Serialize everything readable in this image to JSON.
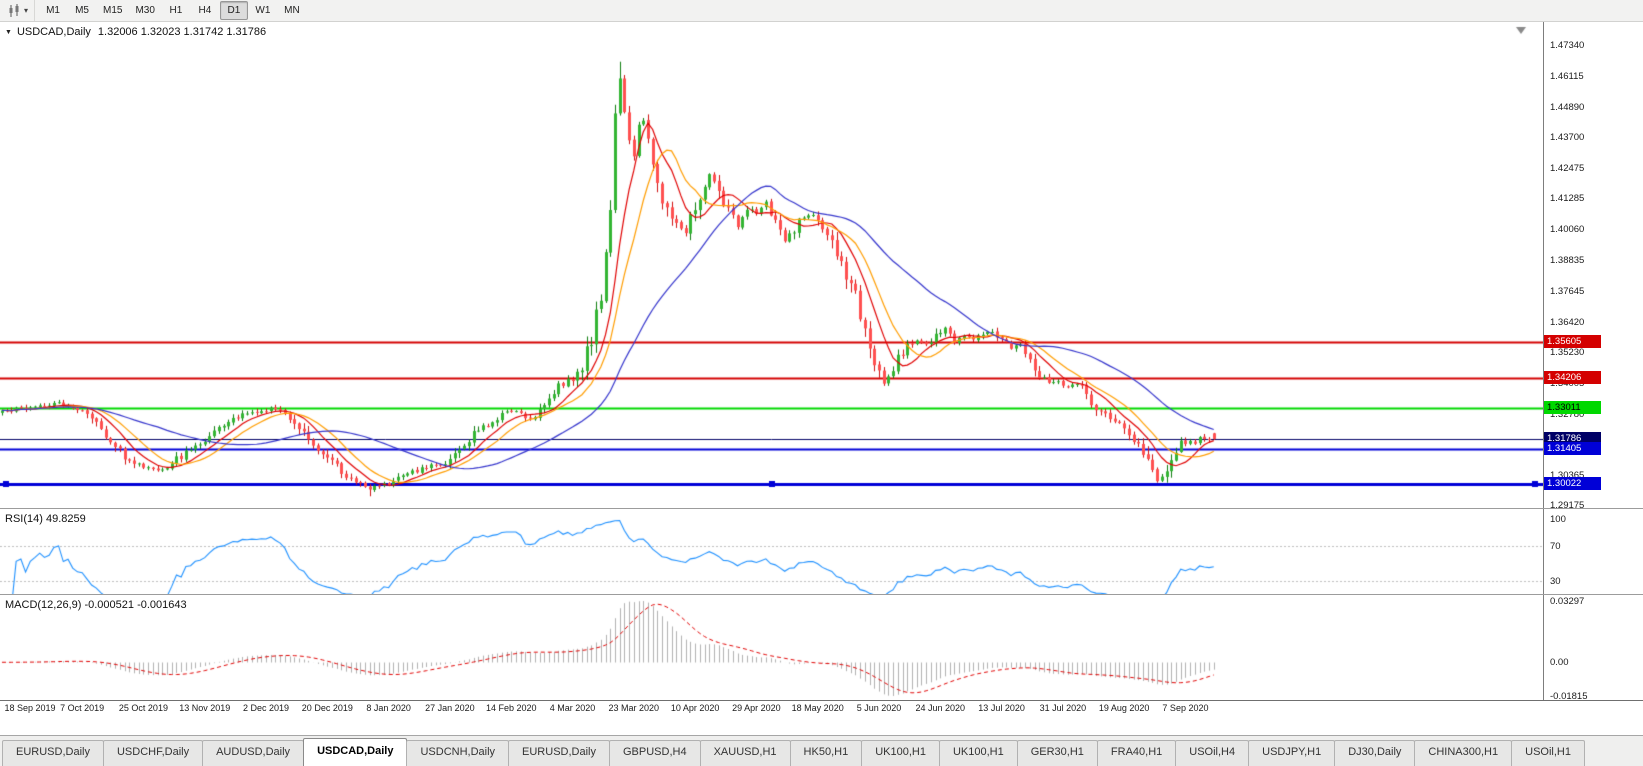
{
  "toolbar": {
    "timeframes": [
      "M1",
      "M5",
      "M15",
      "M30",
      "H1",
      "H4",
      "D1",
      "W1",
      "MN"
    ],
    "active_timeframe": "D1",
    "dropdown_glyph": "▾"
  },
  "main_chart": {
    "collapse_glyph": "▼",
    "title_symbol": "USDCAD,Daily",
    "title_ohlc": "1.32006 1.32023 1.31742 1.31786",
    "price_axis_labels": [
      "1.47340",
      "1.46115",
      "1.44890",
      "1.43700",
      "1.42475",
      "1.41285",
      "1.40060",
      "1.38835",
      "1.37645",
      "1.36420",
      "1.35230",
      "1.34005",
      "1.32780",
      "1.31590",
      "1.30365",
      "1.29175"
    ],
    "hlines": [
      {
        "label": "1.35605",
        "price": 1.35605,
        "color": "#d40000",
        "text_color": "#ffffff",
        "width": 2
      },
      {
        "label": "1.34206",
        "price": 1.34206,
        "color": "#d40000",
        "text_color": "#ffffff",
        "width": 2
      },
      {
        "label": "1.33011",
        "price": 1.33011,
        "color": "#00d800",
        "text_color": "#000000",
        "width": 2
      },
      {
        "label": "1.31786",
        "price": 1.31786,
        "color": "#000066",
        "text_color": "#ffffff",
        "width": 1
      },
      {
        "label": "1.31405",
        "price": 1.31405,
        "color": "#0000d7",
        "text_color": "#ffffff",
        "width": 2
      },
      {
        "label": "1.30022",
        "price": 1.30022,
        "color": "#0000d7",
        "text_color": "#ffffff",
        "width": 3,
        "selected": true
      }
    ],
    "date_labels": [
      "18 Sep 2019",
      "7 Oct 2019",
      "25 Oct 2019",
      "13 Nov 2019",
      "2 Dec 2019",
      "20 Dec 2019",
      "8 Jan 2020",
      "27 Jan 2020",
      "14 Feb 2020",
      "4 Mar 2020",
      "23 Mar 2020",
      "10 Apr 2020",
      "29 Apr 2020",
      "18 May 2020",
      "5 Jun 2020",
      "24 Jun 2020",
      "13 Jul 2020",
      "31 Jul 2020",
      "19 Aug 2020",
      "7 Sep 2020"
    ]
  },
  "rsi_panel": {
    "label": "RSI(14) 49.8259",
    "axis_labels": [
      {
        "text": "100",
        "value": 100
      },
      {
        "text": "70",
        "value": 70
      },
      {
        "text": "30",
        "value": 30
      }
    ]
  },
  "macd_panel": {
    "label": "MACD(12,26,9) -0.000521 -0.001643",
    "max": 0.03297,
    "min": -0.01815,
    "axis_labels": [
      {
        "text": "0.03297",
        "value": 0.03297
      },
      {
        "text": "0.00",
        "value": 0
      },
      {
        "text": "-0.01815",
        "value": -0.01815
      }
    ]
  },
  "tabs": {
    "items": [
      "EURUSD,Daily",
      "USDCHF,Daily",
      "AUDUSD,Daily",
      "USDCAD,Daily",
      "USDCNH,Daily",
      "EURUSD,Daily",
      "GBPUSD,H4",
      "XAUUSD,H1",
      "HK50,H1",
      "UK100,H1",
      "UK100,H1",
      "GER30,H1",
      "FRA40,H1",
      "USOil,H4",
      "USDJPY,H1",
      "DJ30,Daily",
      "CHINA300,H1",
      "USOil,H1"
    ],
    "active_index": 3
  },
  "chart_data": {
    "type": "candlestick",
    "symbol": "USDCAD",
    "timeframe": "Daily",
    "ohlc_current": {
      "open": 1.32006,
      "high": 1.32023,
      "low": 1.31742,
      "close": 1.31786
    },
    "extreme_high": 1.4668,
    "extreme_low": 1.2952,
    "num_candles": 258,
    "x_range": [
      "18 Sep 2019",
      "18 Sep 2020"
    ],
    "y_axis_range": [
      1.29175,
      1.4734
    ],
    "horizontal_levels": [
      1.35605,
      1.34206,
      1.33011,
      1.31786,
      1.31405,
      1.30022
    ],
    "moving_averages": [
      {
        "period": 8,
        "color": "#e00000"
      },
      {
        "period": 13,
        "color": "#ff9d00"
      },
      {
        "period": 34,
        "color": "#3535cc"
      }
    ],
    "indicators": {
      "rsi": {
        "period": 14,
        "value": 49.8259,
        "levels": [
          30,
          70
        ]
      },
      "macd": {
        "fast": 12,
        "slow": 26,
        "signal": 9,
        "values": [
          -0.000521,
          -0.001643
        ],
        "axis_max": 0.03297,
        "axis_min": -0.01815
      }
    },
    "style": {
      "up_fill": "#33b533",
      "up_border": "#0e7e0e",
      "down_fill": "#ff5050",
      "down_border": "#d01010",
      "rsi_line": "#1E90FF",
      "macd_hist": "#b0b0b0",
      "macd_signal": "#e00000"
    },
    "price_anchors": [
      [
        0,
        1.3285
      ],
      [
        6,
        1.3305
      ],
      [
        12,
        1.332
      ],
      [
        18,
        1.3285
      ],
      [
        22,
        1.319
      ],
      [
        26,
        1.311
      ],
      [
        30,
        1.3065
      ],
      [
        34,
        1.306
      ],
      [
        38,
        1.311
      ],
      [
        42,
        1.316
      ],
      [
        46,
        1.323
      ],
      [
        50,
        1.327
      ],
      [
        54,
        1.3285
      ],
      [
        58,
        1.33
      ],
      [
        62,
        1.325
      ],
      [
        66,
        1.316
      ],
      [
        70,
        1.309
      ],
      [
        74,
        1.302
      ],
      [
        78,
        1.2985
      ],
      [
        82,
        1.3
      ],
      [
        86,
        1.304
      ],
      [
        90,
        1.3065
      ],
      [
        94,
        1.309
      ],
      [
        98,
        1.316
      ],
      [
        102,
        1.323
      ],
      [
        106,
        1.327
      ],
      [
        109,
        1.3295
      ],
      [
        112,
        1.3255
      ],
      [
        115,
        1.331
      ],
      [
        118,
        1.339
      ],
      [
        121,
        1.342
      ],
      [
        123,
        1.346
      ],
      [
        125,
        1.358
      ],
      [
        127,
        1.375
      ],
      [
        128,
        1.392
      ],
      [
        129,
        1.41
      ],
      [
        130,
        1.445
      ],
      [
        131,
        1.46
      ],
      [
        132,
        1.448
      ],
      [
        133,
        1.438
      ],
      [
        134,
        1.43
      ],
      [
        135,
        1.442
      ],
      [
        136,
        1.444
      ],
      [
        137,
        1.435
      ],
      [
        138,
        1.428
      ],
      [
        139,
        1.418
      ],
      [
        140,
        1.412
      ],
      [
        141,
        1.408
      ],
      [
        143,
        1.402
      ],
      [
        145,
        1.399
      ],
      [
        147,
        1.41
      ],
      [
        149,
        1.418
      ],
      [
        150,
        1.423
      ],
      [
        152,
        1.415
      ],
      [
        154,
        1.408
      ],
      [
        156,
        1.402
      ],
      [
        158,
        1.409
      ],
      [
        160,
        1.406
      ],
      [
        162,
        1.411
      ],
      [
        164,
        1.403
      ],
      [
        166,
        1.396
      ],
      [
        168,
        1.401
      ],
      [
        170,
        1.406
      ],
      [
        173,
        1.405
      ],
      [
        176,
        1.395
      ],
      [
        178,
        1.387
      ],
      [
        180,
        1.379
      ],
      [
        182,
        1.368
      ],
      [
        184,
        1.356
      ],
      [
        186,
        1.344
      ],
      [
        187,
        1.339
      ],
      [
        188,
        1.343
      ],
      [
        190,
        1.35
      ],
      [
        192,
        1.354
      ],
      [
        194,
        1.357
      ],
      [
        196,
        1.355
      ],
      [
        198,
        1.358
      ],
      [
        200,
        1.362
      ],
      [
        202,
        1.356
      ],
      [
        204,
        1.359
      ],
      [
        206,
        1.357
      ],
      [
        208,
        1.36
      ],
      [
        210,
        1.361
      ],
      [
        212,
        1.357
      ],
      [
        214,
        1.353
      ],
      [
        216,
        1.355
      ],
      [
        218,
        1.35
      ],
      [
        220,
        1.343
      ],
      [
        222,
        1.34
      ],
      [
        224,
        1.341
      ],
      [
        226,
        1.338
      ],
      [
        228,
        1.34
      ],
      [
        230,
        1.336
      ],
      [
        232,
        1.33
      ],
      [
        234,
        1.327
      ],
      [
        236,
        1.325
      ],
      [
        238,
        1.321
      ],
      [
        240,
        1.317
      ],
      [
        242,
        1.312
      ],
      [
        244,
        1.306
      ],
      [
        245,
        1.301
      ],
      [
        246,
        1.304
      ],
      [
        247,
        1.307
      ],
      [
        248,
        1.31
      ],
      [
        249,
        1.314
      ],
      [
        250,
        1.316
      ],
      [
        251,
        1.315
      ],
      [
        252,
        1.317
      ],
      [
        253,
        1.316
      ],
      [
        254,
        1.318
      ],
      [
        255,
        1.317
      ],
      [
        256,
        1.3175
      ],
      [
        257,
        1.31786
      ]
    ]
  }
}
